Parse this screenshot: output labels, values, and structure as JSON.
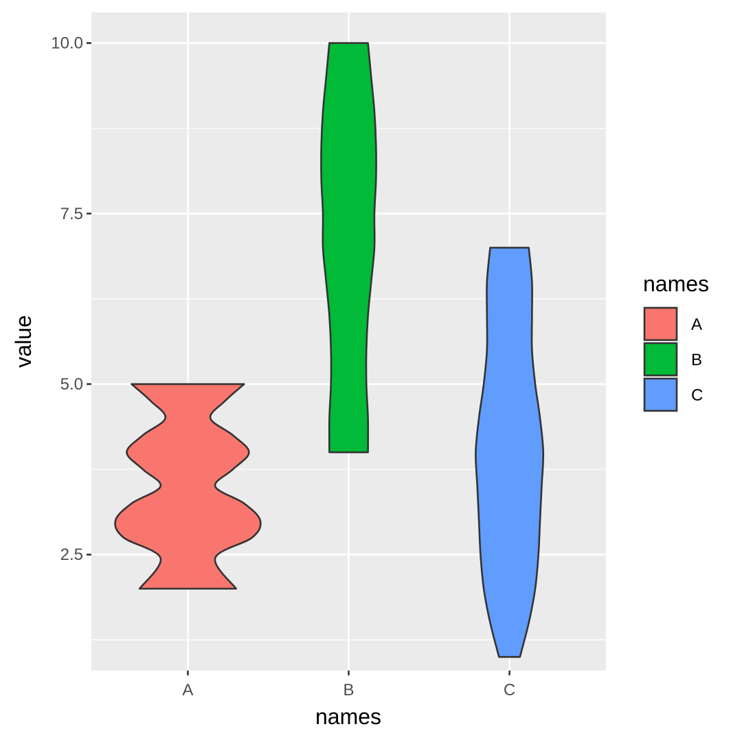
{
  "chart_data": {
    "type": "violin",
    "xlabel": "names",
    "ylabel": "value",
    "categories": [
      "A",
      "B",
      "C"
    ],
    "ylim": [
      0.8,
      10.45
    ],
    "y_ticks": [
      2.5,
      5.0,
      7.5,
      10.0
    ],
    "y_tick_labels": [
      "2.5",
      "5.0",
      "7.5",
      "10.0"
    ],
    "y_minor_ticks": [
      1.25,
      3.75,
      6.25,
      8.75
    ],
    "grid": true,
    "legend": {
      "title": "names",
      "position": "right",
      "entries": [
        {
          "label": "A",
          "color": "#F8766D"
        },
        {
          "label": "B",
          "color": "#00BA38"
        },
        {
          "label": "C",
          "color": "#619CFF"
        }
      ]
    },
    "series": [
      {
        "category": "A",
        "color": "#F8766D",
        "min": 2.0,
        "max": 5.0,
        "density_profile": [
          [
            2.0,
            0.3
          ],
          [
            2.45,
            0.17
          ],
          [
            2.75,
            0.4
          ],
          [
            3.0,
            0.45
          ],
          [
            3.25,
            0.35
          ],
          [
            3.5,
            0.17
          ],
          [
            3.75,
            0.28
          ],
          [
            4.0,
            0.38
          ],
          [
            4.25,
            0.28
          ],
          [
            4.5,
            0.14
          ],
          [
            4.75,
            0.23
          ],
          [
            5.0,
            0.35
          ]
        ]
      },
      {
        "category": "B",
        "color": "#00BA38",
        "min": 4.0,
        "max": 10.0,
        "density_profile": [
          [
            4.0,
            0.12
          ],
          [
            4.5,
            0.12
          ],
          [
            5.0,
            0.11
          ],
          [
            5.5,
            0.11
          ],
          [
            6.0,
            0.12
          ],
          [
            6.5,
            0.14
          ],
          [
            7.0,
            0.16
          ],
          [
            7.5,
            0.16
          ],
          [
            8.0,
            0.17
          ],
          [
            8.5,
            0.17
          ],
          [
            9.0,
            0.16
          ],
          [
            9.5,
            0.14
          ],
          [
            10.0,
            0.12
          ]
        ]
      },
      {
        "category": "C",
        "color": "#619CFF",
        "min": 1.0,
        "max": 7.0,
        "density_profile": [
          [
            1.0,
            0.065
          ],
          [
            1.5,
            0.12
          ],
          [
            2.0,
            0.16
          ],
          [
            2.5,
            0.18
          ],
          [
            3.0,
            0.19
          ],
          [
            3.5,
            0.2
          ],
          [
            4.0,
            0.21
          ],
          [
            4.5,
            0.19
          ],
          [
            5.0,
            0.16
          ],
          [
            5.5,
            0.14
          ],
          [
            6.0,
            0.14
          ],
          [
            6.5,
            0.14
          ],
          [
            7.0,
            0.12
          ]
        ]
      }
    ]
  }
}
